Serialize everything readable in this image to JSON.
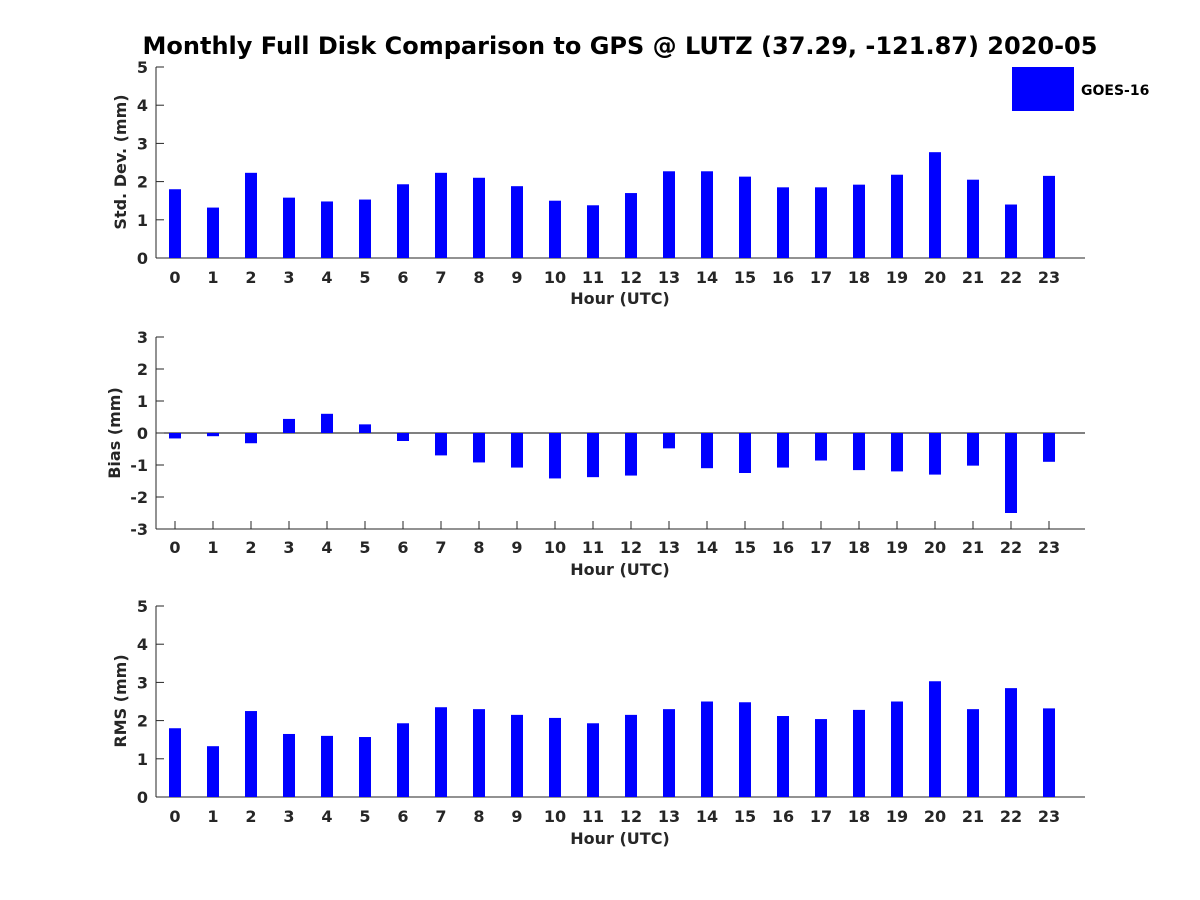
{
  "figure": {
    "title": "Monthly Full Disk Comparison to GPS @ LUTZ (37.29, -121.87) 2020-05",
    "legend": {
      "label": "GOES-16",
      "color": "#0000ff",
      "placement": "top-right"
    },
    "bar_color": "#0000ff"
  },
  "chart_data": [
    {
      "type": "bar",
      "title": "Monthly Full Disk Comparison to GPS @ LUTZ (37.29, -121.87) 2020-05",
      "xlabel": "Hour (UTC)",
      "ylabel": "Std. Dev. (mm)",
      "ylim": [
        0,
        5
      ],
      "yticks": [
        0,
        1,
        2,
        3,
        4,
        5
      ],
      "grid": false,
      "categories": [
        "0",
        "1",
        "2",
        "3",
        "4",
        "5",
        "6",
        "7",
        "8",
        "9",
        "10",
        "11",
        "12",
        "13",
        "14",
        "15",
        "16",
        "17",
        "18",
        "19",
        "20",
        "21",
        "22",
        "23"
      ],
      "series": [
        {
          "name": "GOES-16",
          "values": [
            1.8,
            1.32,
            2.23,
            1.58,
            1.48,
            1.53,
            1.93,
            2.23,
            2.1,
            1.88,
            1.5,
            1.38,
            1.7,
            2.27,
            2.27,
            2.13,
            1.85,
            1.85,
            1.92,
            2.18,
            2.77,
            2.05,
            1.4,
            2.15
          ]
        }
      ]
    },
    {
      "type": "bar",
      "xlabel": "Hour (UTC)",
      "ylabel": "Bias (mm)",
      "ylim": [
        -3,
        3
      ],
      "yticks": [
        -3,
        -2,
        -1,
        0,
        1,
        2,
        3
      ],
      "grid": false,
      "categories": [
        "0",
        "1",
        "2",
        "3",
        "4",
        "5",
        "6",
        "7",
        "8",
        "9",
        "10",
        "11",
        "12",
        "13",
        "14",
        "15",
        "16",
        "17",
        "18",
        "19",
        "20",
        "21",
        "22",
        "23"
      ],
      "series": [
        {
          "name": "GOES-16",
          "values": [
            -0.17,
            -0.1,
            -0.32,
            0.44,
            0.6,
            0.27,
            -0.25,
            -0.7,
            -0.92,
            -1.08,
            -1.42,
            -1.38,
            -1.33,
            -0.48,
            -1.1,
            -1.25,
            -1.08,
            -0.86,
            -1.16,
            -1.2,
            -1.3,
            -1.02,
            -2.5,
            -0.9
          ]
        }
      ]
    },
    {
      "type": "bar",
      "xlabel": "Hour (UTC)",
      "ylabel": "RMS (mm)",
      "ylim": [
        0,
        5
      ],
      "yticks": [
        0,
        1,
        2,
        3,
        4,
        5
      ],
      "grid": false,
      "categories": [
        "0",
        "1",
        "2",
        "3",
        "4",
        "5",
        "6",
        "7",
        "8",
        "9",
        "10",
        "11",
        "12",
        "13",
        "14",
        "15",
        "16",
        "17",
        "18",
        "19",
        "20",
        "21",
        "22",
        "23"
      ],
      "series": [
        {
          "name": "GOES-16",
          "values": [
            1.8,
            1.33,
            2.25,
            1.65,
            1.6,
            1.57,
            1.93,
            2.35,
            2.3,
            2.15,
            2.07,
            1.93,
            2.15,
            2.3,
            2.5,
            2.48,
            2.12,
            2.04,
            2.28,
            2.5,
            3.03,
            2.3,
            2.85,
            2.32
          ]
        }
      ]
    }
  ]
}
